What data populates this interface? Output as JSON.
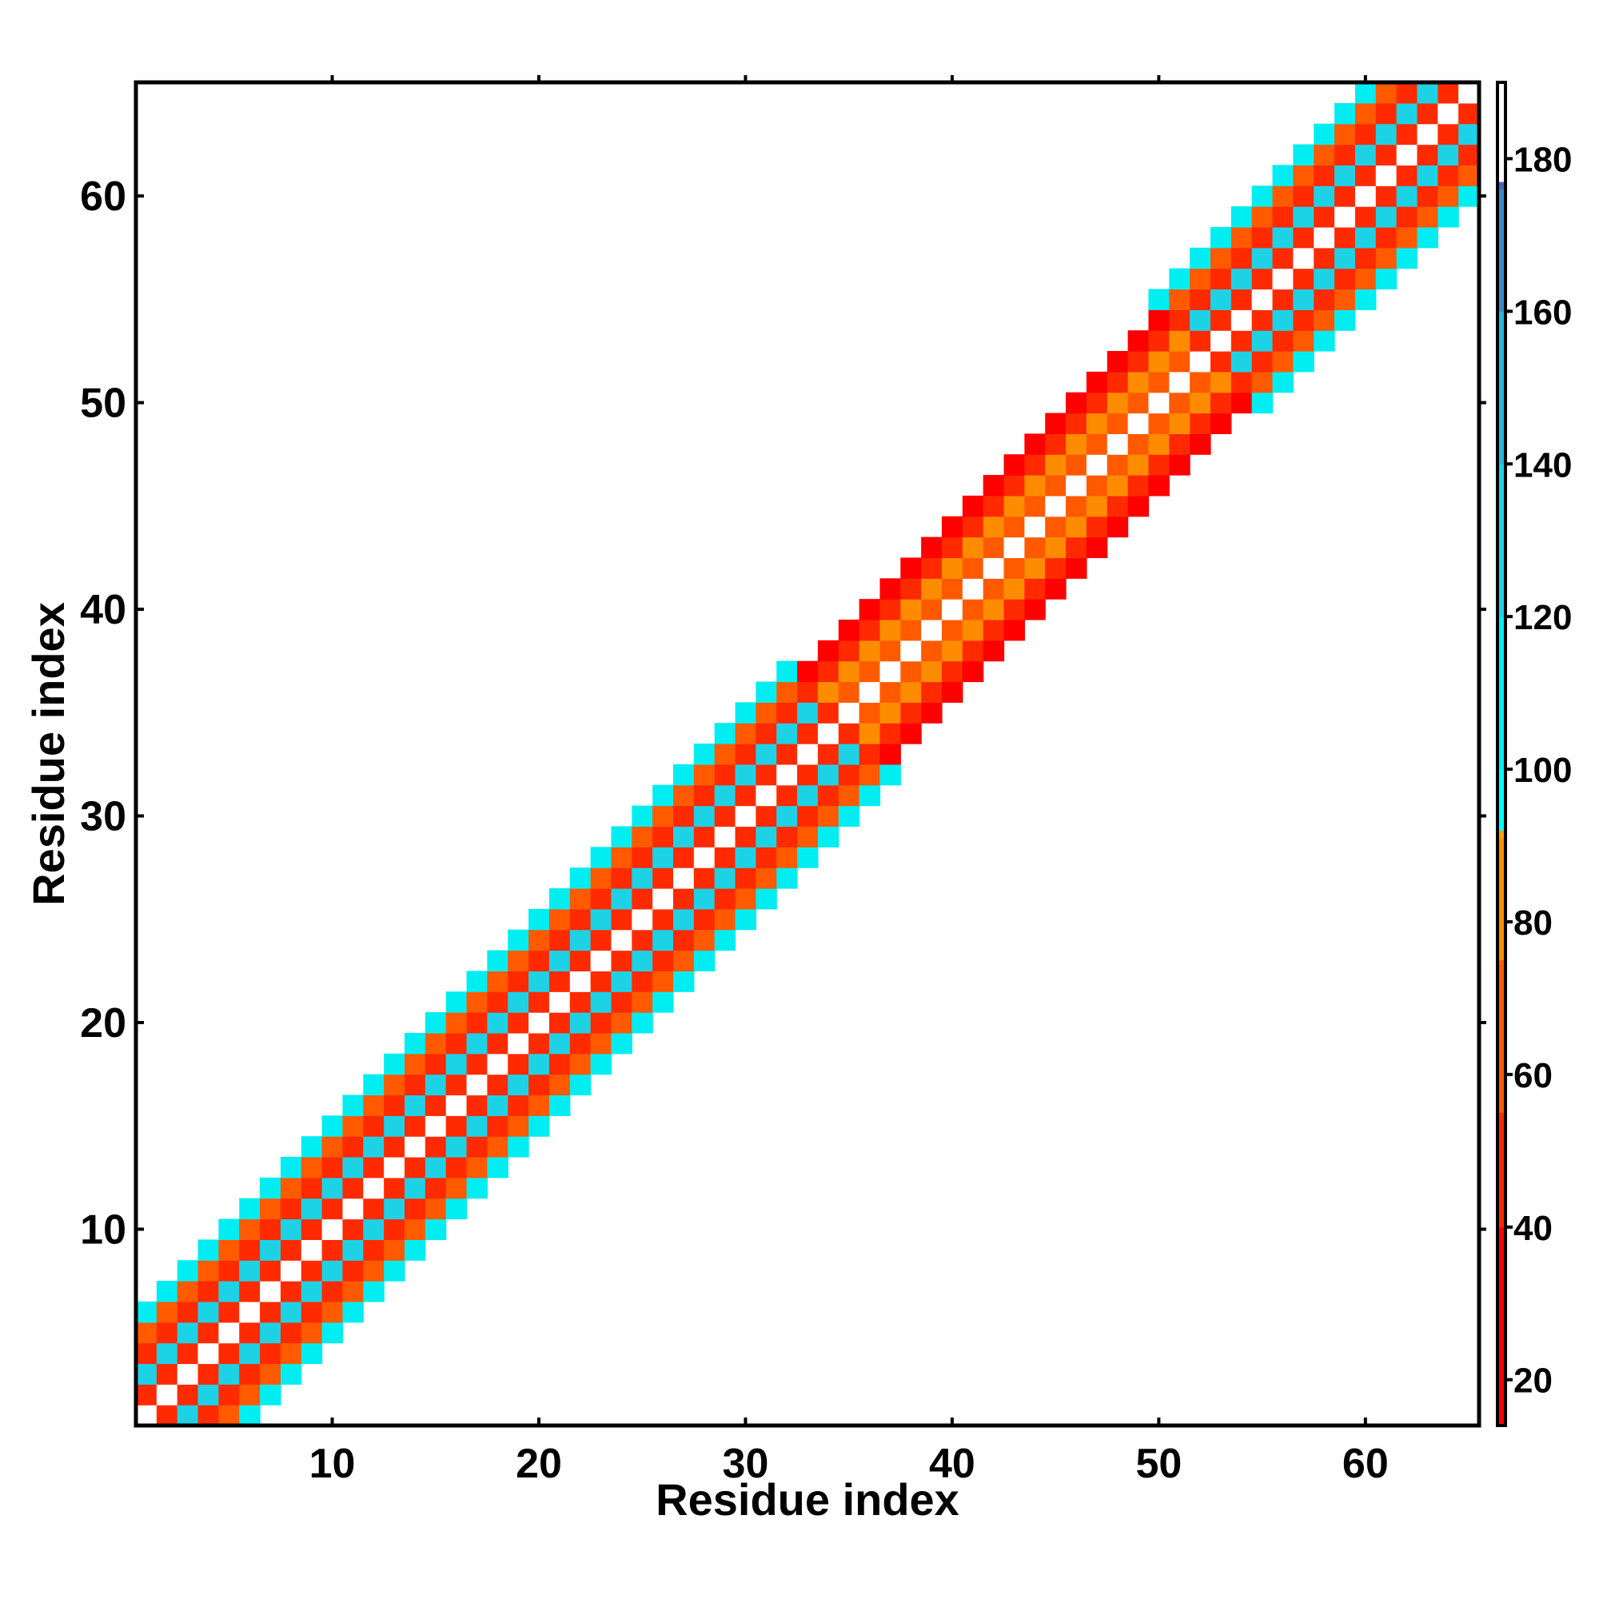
{
  "chart_data": {
    "type": "heatmap",
    "title": "",
    "xlabel": "Residue index",
    "ylabel": "Residue index",
    "x_range": [
      0.5,
      65.5
    ],
    "y_range": [
      0.5,
      65.5
    ],
    "x_ticks": [
      10,
      20,
      30,
      40,
      50,
      60
    ],
    "y_ticks": [
      10,
      20,
      30,
      40,
      50,
      60
    ],
    "x_tick_labels": [
      "10",
      "20",
      "30",
      "40",
      "50",
      "60"
    ],
    "y_tick_labels": [
      "10",
      "20",
      "30",
      "40",
      "50",
      "60"
    ],
    "grid": false,
    "n_residues": 65,
    "diagonal_value": 190,
    "band_description": "Symmetric band around the diagonal; offsets |i-j| 1..5 hold angle-like values. Residues 1-34 and 53-65 are helical (offset 1 ~ 50, offset 2 ~ 120, offset 3 ~ 40, offset 4 ~ 55, offset 5 ~ 100); residues 35-52 are less regular (offsets 1..4 ~ 55, 75, 50, 35).",
    "profiles": {
      "helix": {
        "1": 50,
        "2": 120,
        "3": 40,
        "4": 55,
        "5": 100
      },
      "coil": {
        "1": 55,
        "2": 75,
        "3": 50,
        "4": 35
      }
    },
    "coil_start": 35,
    "coil_end": 52,
    "colorbar": {
      "min": 14,
      "max": 190,
      "ticks": [
        20,
        40,
        60,
        80,
        100,
        120,
        140,
        160,
        180
      ],
      "tick_labels": [
        "20",
        "40",
        "60",
        "80",
        "100",
        "120",
        "140",
        "160",
        "180"
      ],
      "stops": [
        {
          "value": 14,
          "color": "#ff0000"
        },
        {
          "value": 40,
          "color": "#ff2a00"
        },
        {
          "value": 55,
          "color": "#ff5a00"
        },
        {
          "value": 75,
          "color": "#ff8c00"
        },
        {
          "value": 91,
          "color": "#ffa000"
        },
        {
          "value": 92,
          "color": "#00ffff"
        },
        {
          "value": 100,
          "color": "#00eef2"
        },
        {
          "value": 120,
          "color": "#1ed2e6"
        },
        {
          "value": 140,
          "color": "#28b4dc"
        },
        {
          "value": 160,
          "color": "#3c8cc8"
        },
        {
          "value": 176,
          "color": "#5064b4"
        },
        {
          "value": 177,
          "color": "#ffffff"
        },
        {
          "value": 190,
          "color": "#ffffff"
        }
      ]
    }
  }
}
